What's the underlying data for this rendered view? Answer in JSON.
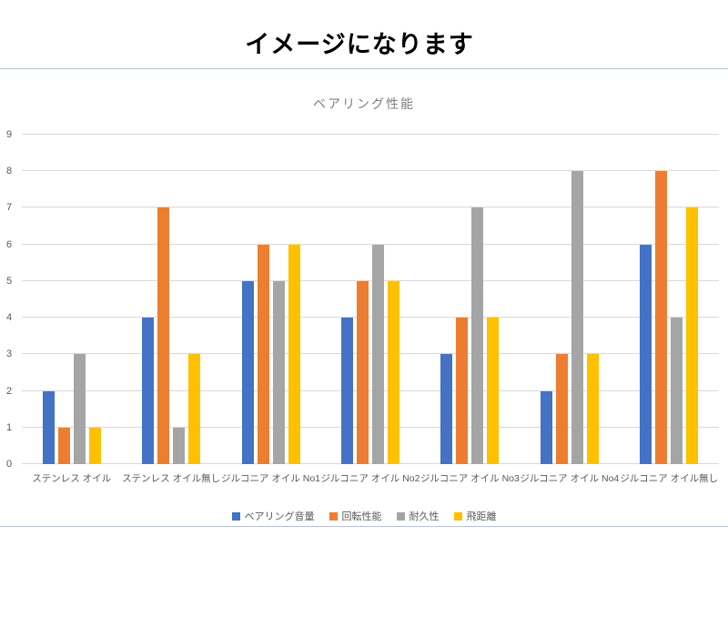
{
  "page": {
    "title": "イメージになります"
  },
  "chart_data": {
    "type": "bar",
    "title": "ベアリング性能",
    "categories": [
      "ステンレス オイル",
      "ステンレス オイル無し",
      "ジルコニア オイル No1",
      "ジルコニア オイル No2",
      "ジルコニア オイル No3",
      "ジルコニア オイル No4",
      "ジルコニア オイル無し"
    ],
    "series": [
      {
        "name": "ベアリング音量",
        "color": "#4472C4",
        "values": [
          2,
          4,
          5,
          4,
          3,
          2,
          6
        ]
      },
      {
        "name": "回転性能",
        "color": "#ED7D31",
        "values": [
          1,
          7,
          6,
          5,
          4,
          3,
          8
        ]
      },
      {
        "name": "耐久性",
        "color": "#A5A5A5",
        "values": [
          3,
          1,
          5,
          6,
          7,
          8,
          4
        ]
      },
      {
        "name": "飛距離",
        "color": "#FFC000",
        "values": [
          1,
          3,
          6,
          5,
          4,
          3,
          7
        ]
      }
    ],
    "ylabel": "",
    "xlabel": "",
    "ylim": [
      0,
      9
    ],
    "ytick_step": 1,
    "grid": true,
    "legend_position": "bottom",
    "colors": {
      "gridline": "#d9d9d9",
      "axis_text": "#595959",
      "chart_title_text": "#7f7f7f",
      "page_rule": "#aec3e2"
    }
  }
}
